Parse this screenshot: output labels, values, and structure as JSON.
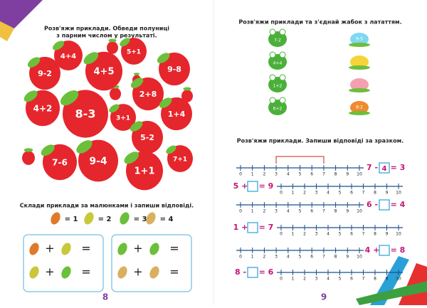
{
  "left_page": {
    "task1": {
      "instruction": [
        "Розв'яжи приклади. Обведи полуниці",
        "з парним числом у результаті."
      ],
      "strawberries": [
        "4+4",
        "5+1",
        "9-2",
        "4+5",
        "9-8",
        "2+8",
        "4+2",
        "8-3",
        "3+1",
        "1+4",
        "5-2",
        "7-6",
        "9-4",
        "1+1",
        "7+1"
      ]
    },
    "task2": {
      "instruction": "Склади приклади за малюнками і запиши відповіді.",
      "legend": [
        "= 1",
        "= 2",
        "= 3",
        "= 4"
      ],
      "boxes": [
        [
          "+",
          "=",
          "+",
          "="
        ],
        [
          "+",
          "=",
          "+",
          "="
        ]
      ]
    },
    "page_number": "8"
  },
  "right_page": {
    "task1": {
      "instruction": "Розв'яжи приклади та з'єднай жабок з лататтям.",
      "frogs": [
        "7-2",
        "4+4",
        "1+2",
        "6+2"
      ],
      "lilies": [
        "9-5",
        "8-2"
      ]
    },
    "task2": {
      "instruction": "Розв'яжи приклади. Запиши відповіді за зразком.",
      "number_line": [
        "0",
        "1",
        "2",
        "3",
        "4",
        "5",
        "6",
        "7",
        "8",
        "9",
        "10"
      ],
      "equations": [
        {
          "left": "7 -",
          "box": "4",
          "right": "= 3"
        },
        {
          "left": "5 +",
          "right": "= 9"
        },
        {
          "left": "6 -",
          "right": "= 4"
        },
        {
          "left": "1 +",
          "right": "= 7"
        },
        {
          "left": "4 +",
          "right": "= 8"
        },
        {
          "left": "8 -",
          "right": "= 6"
        }
      ]
    },
    "page_number": "9"
  }
}
